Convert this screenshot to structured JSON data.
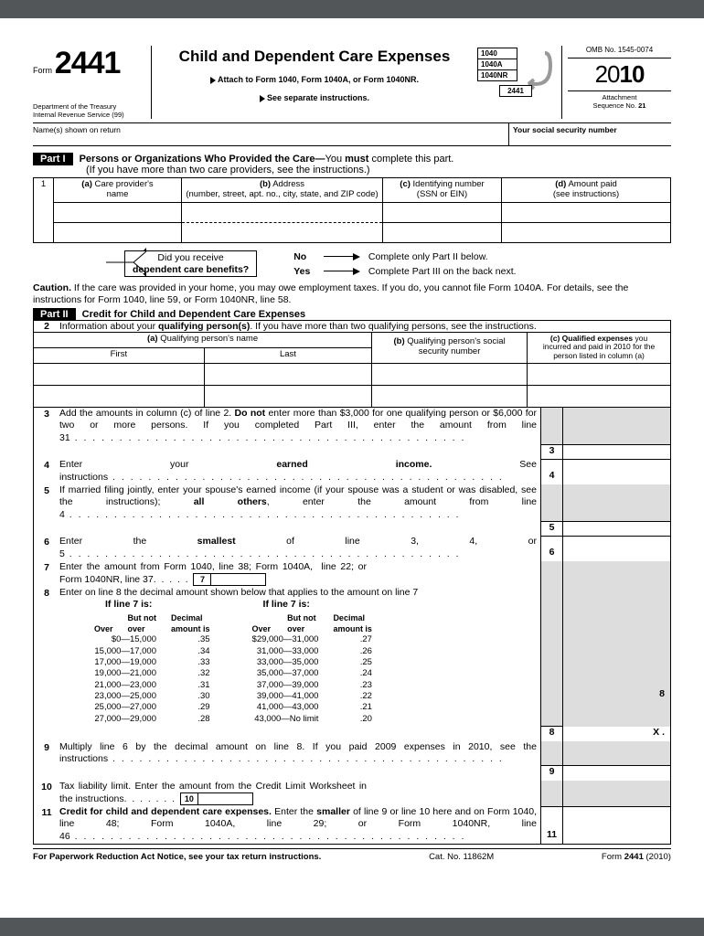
{
  "header": {
    "form_label": "Form",
    "form_number": "2441",
    "title": "Child and Dependent Care Expenses",
    "attach": "Attach to Form 1040, Form 1040A, or Form 1040NR.",
    "see": "See separate instructions.",
    "dept1": "Department of the Treasury",
    "dept2": "Internal Revenue Service (99)",
    "stack": [
      "1040",
      "1040A",
      "1040NR"
    ],
    "stack_form": "2441",
    "omb": "OMB No. 1545-0074",
    "year_prefix": "20",
    "year_suffix": "10",
    "seq1": "Attachment",
    "seq2": "Sequence No.",
    "seq_no": "21",
    "names_label": "Name(s) shown on return",
    "ssn_label": "Your social security number"
  },
  "part1": {
    "badge": "Part I",
    "title": "Persons or Organizations Who Provided the Care—",
    "title2": "You must complete this part.",
    "sub": "(If you have more than two care providers, see the instructions.)",
    "row_num": "1",
    "col_a": "(a) Care provider's name",
    "col_b": "(b) Address",
    "col_b2": "(number, street, apt. no., city, state, and ZIP code)",
    "col_c": "(c) Identifying number (SSN or EIN)",
    "col_d": "(d) Amount paid (see instructions)"
  },
  "yn": {
    "q1": "Did you receive",
    "q2": "dependent care benefits?",
    "no": "No",
    "yes": "Yes",
    "no_txt": "Complete only Part II below.",
    "yes_txt": "Complete Part III on the back next."
  },
  "caution": "Caution. If the care was provided in your home, you may owe employment taxes. If you do, you cannot file Form 1040A. For details, see the instructions for Form 1040, line 59, or Form 1040NR, line 58.",
  "part2": {
    "badge": "Part II",
    "title": "Credit for Child and Dependent Care Expenses",
    "row2_num": "2",
    "row2_txt": "Information about your qualifying person(s). If you have more than two qualifying persons, see the instructions.",
    "col_a": "(a) Qualifying person's name",
    "col_a_first": "First",
    "col_a_last": "Last",
    "col_b": "(b) Qualifying person's social security number",
    "col_c": "(c) Qualified expenses you incurred and paid in 2010 for the person listed in column (a)"
  },
  "lines": {
    "l3": {
      "n": "3",
      "txt": "Add the amounts in column (c) of line 2. Do not enter more than $3,000 for one qualifying person or $6,000 for two or more persons. If you completed Part III, enter the amount from line 31"
    },
    "l4": {
      "n": "4",
      "txt": "Enter your earned income. See instructions"
    },
    "l5": {
      "n": "5",
      "txt": "If married filing jointly, enter your spouse's earned income (if your spouse was a student or was disabled, see the instructions); all others, enter the amount from line 4"
    },
    "l6": {
      "n": "6",
      "txt": "Enter the smallest of line 3, 4, or 5"
    },
    "l7": {
      "n": "7",
      "txt": "Enter the amount from Form 1040, line 38; Form 1040A,  line 22; or Form 1040NR, line 37."
    },
    "l8": {
      "n": "8",
      "txt": "Enter on line 8 the decimal amount shown below that applies to the amount on line 7"
    },
    "l8_header": "If line 7 is:",
    "l8_over": "Over",
    "l8_but": "But not over",
    "l8_dec": "Decimal amount is",
    "l8_x": "X .",
    "l9": {
      "n": "9",
      "txt": "Multiply line 6 by the decimal amount on line 8. If you paid 2009 expenses in 2010, see the instructions"
    },
    "l10": {
      "n": "10",
      "txt": "Tax liability limit. Enter the amount from the Credit Limit Worksheet in the instructions."
    },
    "l11": {
      "n": "11",
      "txt": "Credit for child and dependent care expenses. Enter the smaller of line 9 or line 10 here and on Form 1040, line 48; Form 1040A, line 29; or Form 1040NR, line 46"
    }
  },
  "decimal_left": [
    [
      "$0—15,000",
      ".35"
    ],
    [
      "15,000—17,000",
      ".34"
    ],
    [
      "17,000—19,000",
      ".33"
    ],
    [
      "19,000—21,000",
      ".32"
    ],
    [
      "21,000—23,000",
      ".31"
    ],
    [
      "23,000—25,000",
      ".30"
    ],
    [
      "25,000—27,000",
      ".29"
    ],
    [
      "27,000—29,000",
      ".28"
    ]
  ],
  "decimal_right": [
    [
      "$29,000—31,000",
      ".27"
    ],
    [
      "31,000—33,000",
      ".26"
    ],
    [
      "33,000—35,000",
      ".25"
    ],
    [
      "35,000—37,000",
      ".24"
    ],
    [
      "37,000—39,000",
      ".23"
    ],
    [
      "39,000—41,000",
      ".22"
    ],
    [
      "41,000—43,000",
      ".21"
    ],
    [
      "43,000—No limit",
      ".20"
    ]
  ],
  "footer": {
    "left": "For Paperwork Reduction Act Notice, see your tax return instructions.",
    "mid": "Cat. No. 11862M",
    "right": "Form 2441 (2010)"
  }
}
